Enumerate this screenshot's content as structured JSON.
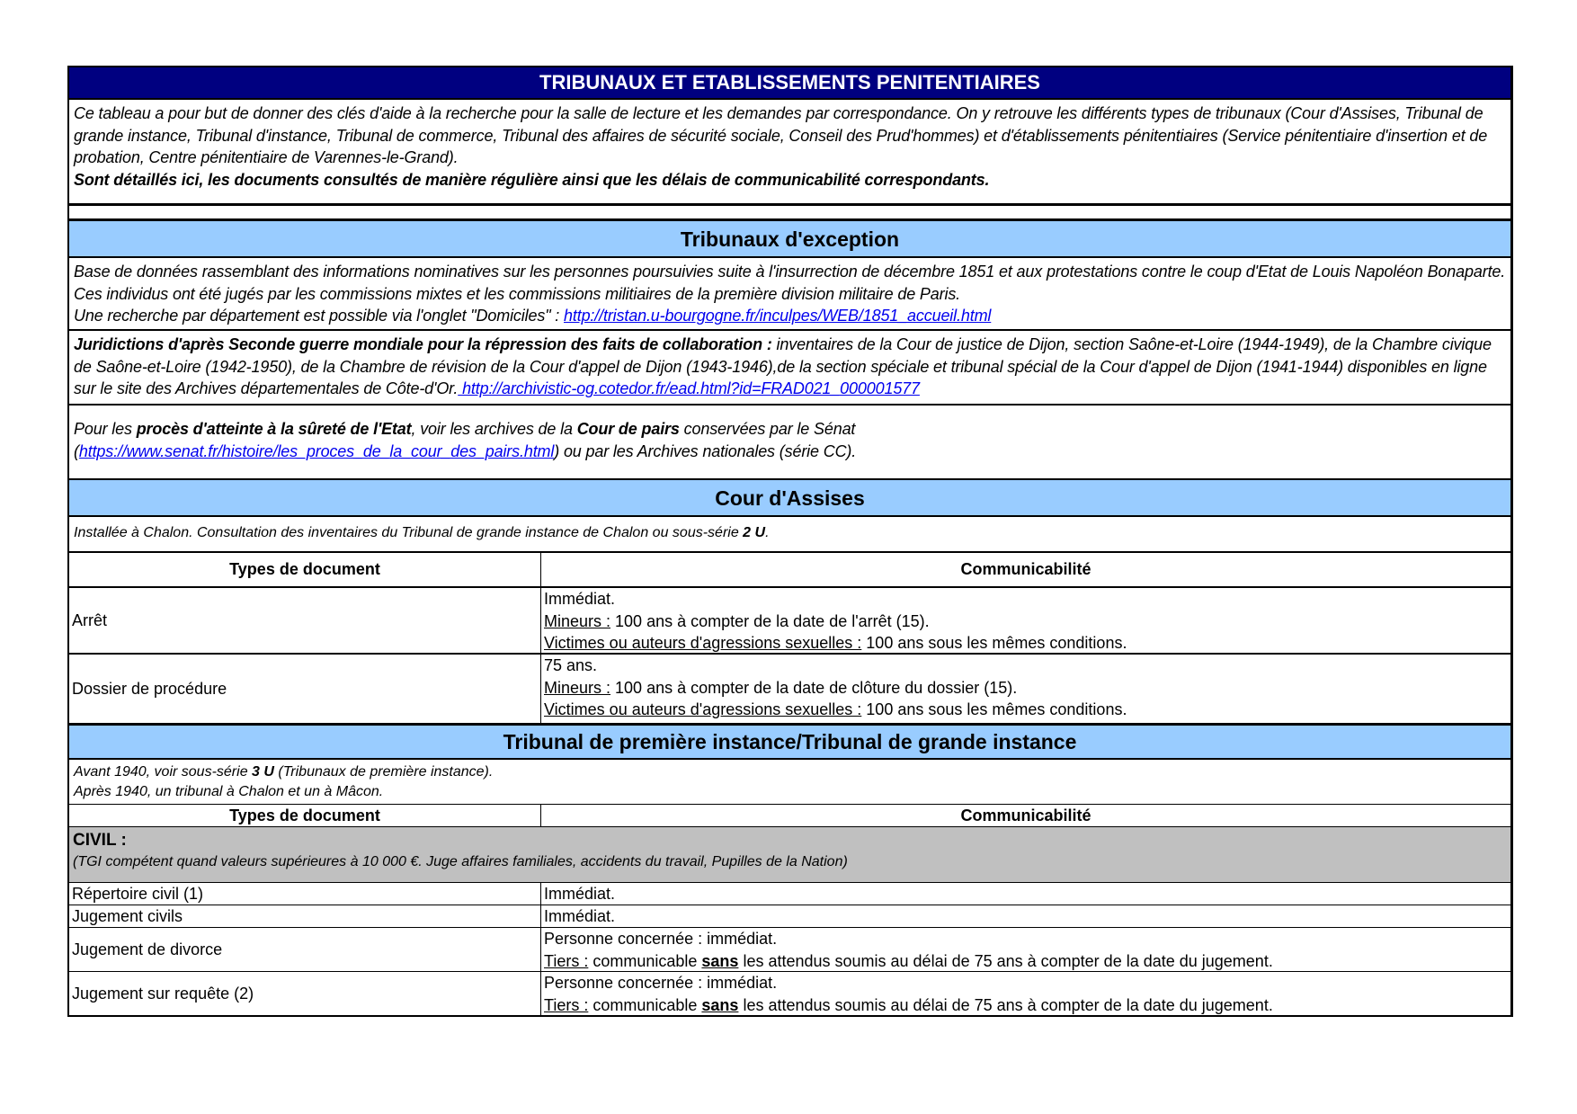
{
  "title": "TRIBUNAUX ET ETABLISSEMENTS PENITENTIAIRES",
  "intro": {
    "text": "Ce tableau a pour but de donner des clés d'aide à la recherche pour la salle de lecture et les demandes par correspondance. On y retrouve les différents types de tribunaux (Cour d'Assises, Tribunal de grande instance, Tribunal d'instance, Tribunal de commerce, Tribunal des affaires de sécurité sociale, Conseil des Prud'hommes) et d'établissements pénitentiaires (Service pénitentiaire d'insertion et de probation, Centre pénitentiaire de Varennes-le-Grand).",
    "bold": "Sont détaillés ici, les documents consultés de manière régulière ainsi que les délais de communicabilité correspondants."
  },
  "exception": {
    "heading": "Tribunaux d'exception",
    "p1": "Base de données rassemblant des informations nominatives sur les personnes poursuivies suite à l'insurrection de décembre 1851 et aux protestations contre le coup d'Etat de Louis Napoléon Bonaparte. Ces individus ont été jugés par les commissions mixtes et les commissions militiaires de la première division militaire de Paris.",
    "p1b": "Une recherche par département est possible via l'onglet \"Domiciles\" : ",
    "p1_link": " http://tristan.u-bourgogne.fr/inculpes/WEB/1851_accueil.html",
    "p2_bold": "Juridictions d'après Seconde guerre mondiale pour la répression des faits de collaboration :",
    "p2": "  inventaires de la Cour de justice de Dijon, section Saône-et-Loire (1944-1949), de la Chambre civique de Saône-et-Loire (1942-1950), de la Chambre de révision de la Cour d'appel de Dijon (1943-1946),de la section spéciale et tribunal spécial de la Cour d'appel de Dijon (1941-1944) disponibles en ligne sur le site des Archives départementales de Côte-d'Or.",
    "p2_link": " http://archivistic-og.cotedor.fr/ead.html?id=FRAD021_000001577",
    "p3_a": "Pour les ",
    "p3_b1": " procès d'atteinte à la sûreté de l'Etat",
    "p3_c": ", voir les archives de la ",
    "p3_b2": " Cour de pairs",
    "p3_d": "  conservées par le Sénat",
    "p3_e": "(",
    "p3_link": "https://www.senat.fr/histoire/les_proces_de_la_cour_des_pairs.html",
    "p3_f": ") ou par les Archives nationales (série CC)."
  },
  "assises": {
    "heading": "Cour d'Assises",
    "note": "Installée à Chalon. Consultation des inventaires du Tribunal de grande instance de Chalon ou sous-série ",
    "note_bold": " 2 U",
    "note_end": ".",
    "col1": "Types de document",
    "col2": "Communicabilité",
    "rows": [
      {
        "type": "Arrêt",
        "l1": "Immédiat.",
        "u2": "Mineurs :",
        "t2": " 100 ans à compter de la date de l'arrêt (15).",
        "u3": "Victimes ou auteurs d'agressions sexuelles :",
        "t3": " 100 ans sous les mêmes conditions."
      },
      {
        "type": "Dossier de procédure",
        "l1": "75 ans.",
        "u2": "Mineurs :",
        "t2": " 100 ans à compter de la date de clôture du dossier (15).",
        "u3": "Victimes ou auteurs d'agressions sexuelles :",
        "t3": " 100 ans sous les mêmes conditions."
      }
    ]
  },
  "tgi": {
    "heading": "Tribunal de première instance/Tribunal de grande instance",
    "note1": "Avant 1940, voir sous-série ",
    "note1_bold": " 3 U",
    "note1_end": "  (Tribunaux de première instance).",
    "note2": "Après 1940, un tribunal à Chalon et un à Mâcon.",
    "col1": "Types de document",
    "col2": "Communicabilité",
    "civil_label": "CIVIL :",
    "civil_note": "(TGI compétent quand valeurs supérieures à 10 000 €. Juge affaires familiales, accidents du travail, Pupilles de la Nation)",
    "rows": [
      {
        "type": "Répertoire civil (1)",
        "l1": "Immédiat."
      },
      {
        "type": "Jugement civils",
        "l1": "Immédiat."
      },
      {
        "type": "Jugement de divorce",
        "l1": "Personne concernée : immédiat.",
        "u2": "Tiers :",
        "t2a": " communicable ",
        "b2": "sans",
        "t2b": " les attendus soumis au délai de 75 ans à compter de la date du jugement."
      },
      {
        "type": "Jugement sur requête (2)",
        "l1": "Personne concernée : immédiat.",
        "u2": "Tiers :",
        "t2a": " communicable ",
        "b2": "sans",
        "t2b": " les attendus soumis au délai de 75 ans à compter de la date du jugement."
      }
    ]
  }
}
